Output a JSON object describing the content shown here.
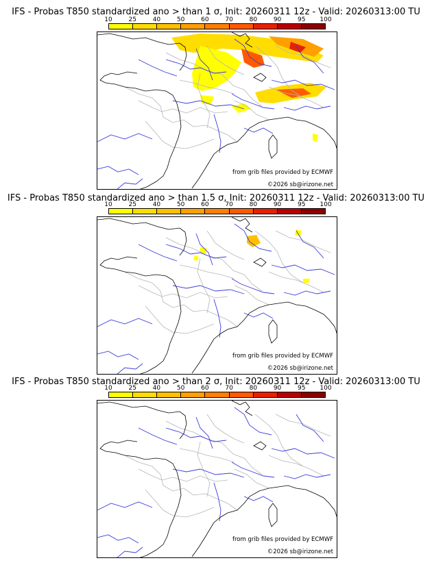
{
  "colors": {
    "river": "#3a3adb",
    "border": "#b5b5b5",
    "coast": "#000000",
    "scale": [
      "#ffff00",
      "#ffdd00",
      "#ffc000",
      "#ffa000",
      "#ff8000",
      "#ff5a00",
      "#e82000",
      "#b80000",
      "#8a0000"
    ]
  },
  "scale_ticks": [
    "10",
    "25",
    "40",
    "50",
    "60",
    "70",
    "80",
    "90",
    "95",
    "100"
  ],
  "panels": [
    {
      "title": "IFS - Probas T850  standardized ano > than 1 σ, Init: 20260311 12z - Valid: 20260313:00 TU",
      "credit_source": "from grib files provided by ECMWF",
      "credit_copyright": "©2026 sb@irizone.net"
    },
    {
      "title": "IFS - Probas T850  standardized ano > than 1.5 σ, Init: 20260311 12z - Valid: 20260313:00 TU",
      "credit_source": "from grib files provided by ECMWF",
      "credit_copyright": "©2026 sb@irizone.net"
    },
    {
      "title": "IFS - Probas T850  standardized ano > than 2 σ, Init: 20260311 12z - Valid: 20260313:00 TU",
      "credit_source": "from grib files provided by ECMWF",
      "credit_copyright": "©2026 sb@irizone.net"
    }
  ]
}
